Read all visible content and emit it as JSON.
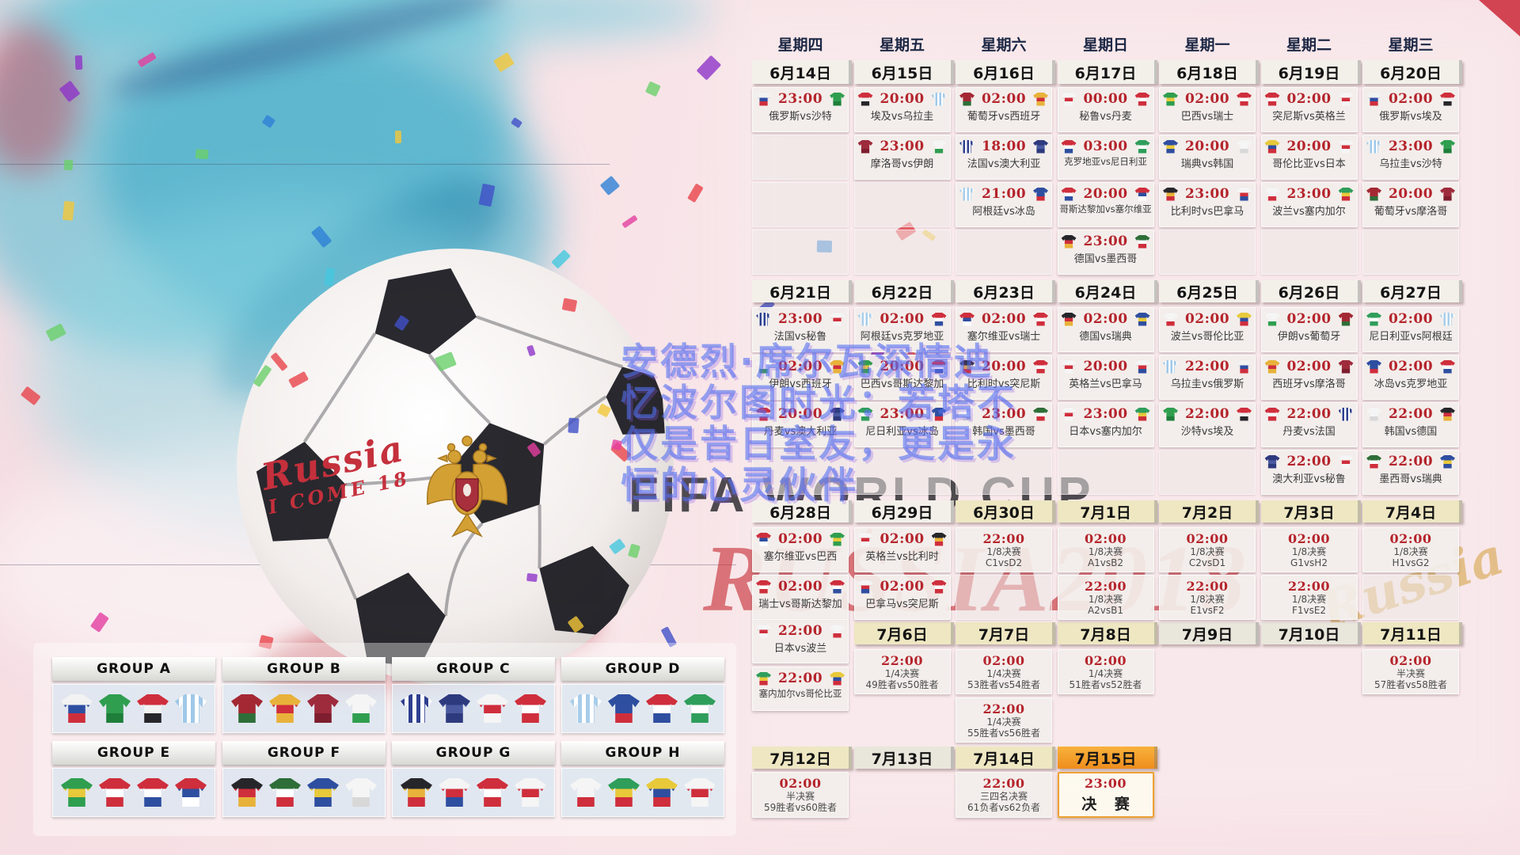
{
  "weekdays": [
    "星期四",
    "星期五",
    "星期六",
    "星期日",
    "星期一",
    "星期二",
    "星期三"
  ],
  "calendar": {
    "date_rows": [
      {
        "band": "d1",
        "cells": [
          {
            "col": 1,
            "label": "6月14日",
            "style": "g"
          },
          {
            "col": 2,
            "label": "6月15日",
            "style": "g"
          },
          {
            "col": 3,
            "label": "6月16日",
            "style": "g"
          },
          {
            "col": 4,
            "label": "6月17日",
            "style": "g"
          },
          {
            "col": 5,
            "label": "6月18日",
            "style": "g"
          },
          {
            "col": 6,
            "label": "6月19日",
            "style": "g"
          },
          {
            "col": 7,
            "label": "6月20日",
            "style": "g"
          }
        ]
      },
      {
        "band": "d2",
        "cells": [
          {
            "col": 1,
            "label": "6月21日",
            "style": "g"
          },
          {
            "col": 2,
            "label": "6月22日",
            "style": "g"
          },
          {
            "col": 3,
            "label": "6月23日",
            "style": "g"
          },
          {
            "col": 4,
            "label": "6月24日",
            "style": "g"
          },
          {
            "col": 5,
            "label": "6月25日",
            "style": "g"
          },
          {
            "col": 6,
            "label": "6月26日",
            "style": "g"
          },
          {
            "col": 7,
            "label": "6月27日",
            "style": "g"
          }
        ]
      },
      {
        "band": "d3",
        "cells": [
          {
            "col": 1,
            "label": "6月28日",
            "style": "g"
          },
          {
            "col": 2,
            "label": "6月29日",
            "style": "g"
          },
          {
            "col": 3,
            "label": "6月30日",
            "style": "k"
          },
          {
            "col": 4,
            "label": "7月1日",
            "style": "k"
          },
          {
            "col": 5,
            "label": "7月2日",
            "style": "k"
          },
          {
            "col": 6,
            "label": "7月3日",
            "style": "k"
          },
          {
            "col": 7,
            "label": "7月4日",
            "style": "k"
          }
        ]
      },
      {
        "band": "d4",
        "cells": [
          {
            "col": 2,
            "label": "7月6日",
            "style": "k"
          },
          {
            "col": 3,
            "label": "7月7日",
            "style": "k"
          },
          {
            "col": 4,
            "label": "7月8日",
            "style": "k"
          },
          {
            "col": 5,
            "label": "7月9日",
            "style": "n"
          },
          {
            "col": 6,
            "label": "7月10日",
            "style": "n"
          },
          {
            "col": 7,
            "label": "7月11日",
            "style": "k"
          }
        ]
      },
      {
        "band": "d5",
        "cells": [
          {
            "col": 1,
            "label": "7月12日",
            "style": "k"
          },
          {
            "col": 2,
            "label": "7月13日",
            "style": "n"
          },
          {
            "col": 3,
            "label": "7月14日",
            "style": "k"
          },
          {
            "col": 4,
            "label": "7月15日",
            "style": "f"
          }
        ]
      }
    ],
    "cells": [
      {
        "band": "w1a",
        "col": 1,
        "kind": "match",
        "time": "23:00",
        "home": "俄罗斯",
        "away": "沙特"
      },
      {
        "band": "w1a",
        "col": 2,
        "kind": "match",
        "time": "20:00",
        "home": "埃及",
        "away": "乌拉圭"
      },
      {
        "band": "w1a",
        "col": 3,
        "kind": "match",
        "time": "02:00",
        "home": "葡萄牙",
        "away": "西班牙"
      },
      {
        "band": "w1a",
        "col": 4,
        "kind": "match",
        "time": "00:00",
        "home": "秘鲁",
        "away": "丹麦"
      },
      {
        "band": "w1a",
        "col": 5,
        "kind": "match",
        "time": "02:00",
        "home": "巴西",
        "away": "瑞士"
      },
      {
        "band": "w1a",
        "col": 6,
        "kind": "match",
        "time": "02:00",
        "home": "突尼斯",
        "away": "英格兰"
      },
      {
        "band": "w1a",
        "col": 7,
        "kind": "match",
        "time": "02:00",
        "home": "俄罗斯",
        "away": "埃及"
      },
      {
        "band": "w1b",
        "col": 1,
        "kind": "empty"
      },
      {
        "band": "w1b",
        "col": 2,
        "kind": "match",
        "time": "23:00",
        "home": "摩洛哥",
        "away": "伊朗"
      },
      {
        "band": "w1b",
        "col": 3,
        "kind": "match",
        "time": "18:00",
        "home": "法国",
        "away": "澳大利亚"
      },
      {
        "band": "w1b",
        "col": 4,
        "kind": "match",
        "time": "03:00",
        "home": "克罗地亚",
        "away": "尼日利亚"
      },
      {
        "band": "w1b",
        "col": 5,
        "kind": "match",
        "time": "20:00",
        "home": "瑞典",
        "away": "韩国"
      },
      {
        "band": "w1b",
        "col": 6,
        "kind": "match",
        "time": "20:00",
        "home": "哥伦比亚",
        "away": "日本"
      },
      {
        "band": "w1b",
        "col": 7,
        "kind": "match",
        "time": "23:00",
        "home": "乌拉圭",
        "away": "沙特"
      },
      {
        "band": "w1c",
        "col": 1,
        "kind": "empty"
      },
      {
        "band": "w1c",
        "col": 2,
        "kind": "empty"
      },
      {
        "band": "w1c",
        "col": 3,
        "kind": "match",
        "time": "21:00",
        "home": "阿根廷",
        "away": "冰岛"
      },
      {
        "band": "w1c",
        "col": 4,
        "kind": "match",
        "time": "20:00",
        "home": "哥斯达黎加",
        "away": "塞尔维亚"
      },
      {
        "band": "w1c",
        "col": 5,
        "kind": "match",
        "time": "23:00",
        "home": "比利时",
        "away": "巴拿马"
      },
      {
        "band": "w1c",
        "col": 6,
        "kind": "match",
        "time": "23:00",
        "home": "波兰",
        "away": "塞内加尔"
      },
      {
        "band": "w1c",
        "col": 7,
        "kind": "match",
        "time": "20:00",
        "home": "葡萄牙",
        "away": "摩洛哥"
      },
      {
        "band": "w1d",
        "col": 1,
        "kind": "empty"
      },
      {
        "band": "w1d",
        "col": 2,
        "kind": "empty"
      },
      {
        "band": "w1d",
        "col": 3,
        "kind": "empty"
      },
      {
        "band": "w1d",
        "col": 4,
        "kind": "match",
        "time": "23:00",
        "home": "德国",
        "away": "墨西哥"
      },
      {
        "band": "w1d",
        "col": 5,
        "kind": "empty"
      },
      {
        "band": "w1d",
        "col": 6,
        "kind": "empty"
      },
      {
        "band": "w1d",
        "col": 7,
        "kind": "empty"
      },
      {
        "band": "w2a",
        "col": 1,
        "kind": "match",
        "time": "23:00",
        "home": "法国",
        "away": "秘鲁"
      },
      {
        "band": "w2a",
        "col": 2,
        "kind": "match",
        "time": "02:00",
        "home": "阿根廷",
        "away": "克罗地亚"
      },
      {
        "band": "w2a",
        "col": 3,
        "kind": "match",
        "time": "02:00",
        "home": "塞尔维亚",
        "away": "瑞士"
      },
      {
        "band": "w2a",
        "col": 4,
        "kind": "match",
        "time": "02:00",
        "home": "德国",
        "away": "瑞典"
      },
      {
        "band": "w2a",
        "col": 5,
        "kind": "match",
        "time": "02:00",
        "home": "波兰",
        "away": "哥伦比亚"
      },
      {
        "band": "w2a",
        "col": 6,
        "kind": "match",
        "time": "02:00",
        "home": "伊朗",
        "away": "葡萄牙"
      },
      {
        "band": "w2a",
        "col": 7,
        "kind": "match",
        "time": "02:00",
        "home": "尼日利亚",
        "away": "阿根廷"
      },
      {
        "band": "w2b",
        "col": 1,
        "kind": "match",
        "time": "02:00",
        "home": "伊朗",
        "away": "西班牙"
      },
      {
        "band": "w2b",
        "col": 2,
        "kind": "match",
        "time": "20:00",
        "home": "巴西",
        "away": "哥斯达黎加"
      },
      {
        "band": "w2b",
        "col": 3,
        "kind": "match",
        "time": "20:00",
        "home": "比利时",
        "away": "突尼斯"
      },
      {
        "band": "w2b",
        "col": 4,
        "kind": "match",
        "time": "20:00",
        "home": "英格兰",
        "away": "巴拿马"
      },
      {
        "band": "w2b",
        "col": 5,
        "kind": "match",
        "time": "22:00",
        "home": "乌拉圭",
        "away": "俄罗斯"
      },
      {
        "band": "w2b",
        "col": 6,
        "kind": "match",
        "time": "02:00",
        "home": "西班牙",
        "away": "摩洛哥"
      },
      {
        "band": "w2b",
        "col": 7,
        "kind": "match",
        "time": "02:00",
        "home": "冰岛",
        "away": "克罗地亚"
      },
      {
        "band": "w2c",
        "col": 1,
        "kind": "match",
        "time": "20:00",
        "home": "丹麦",
        "away": "澳大利亚"
      },
      {
        "band": "w2c",
        "col": 2,
        "kind": "match",
        "time": "23:00",
        "home": "尼日利亚",
        "away": "冰岛"
      },
      {
        "band": "w2c",
        "col": 3,
        "kind": "match",
        "time": "23:00",
        "home": "韩国",
        "away": "墨西哥"
      },
      {
        "band": "w2c",
        "col": 4,
        "kind": "match",
        "time": "23:00",
        "home": "日本",
        "away": "塞内加尔"
      },
      {
        "band": "w2c",
        "col": 5,
        "kind": "match",
        "time": "22:00",
        "home": "沙特",
        "away": "埃及"
      },
      {
        "band": "w2c",
        "col": 6,
        "kind": "match",
        "time": "22:00",
        "home": "丹麦",
        "away": "法国"
      },
      {
        "band": "w2c",
        "col": 7,
        "kind": "match",
        "time": "22:00",
        "home": "韩国",
        "away": "德国"
      },
      {
        "band": "w2d",
        "col": 1,
        "kind": "empty"
      },
      {
        "band": "w2d",
        "col": 2,
        "kind": "empty"
      },
      {
        "band": "w2d",
        "col": 3,
        "kind": "empty"
      },
      {
        "band": "w2d",
        "col": 4,
        "kind": "empty"
      },
      {
        "band": "w2d",
        "col": 5,
        "kind": "empty"
      },
      {
        "band": "w2d",
        "col": 6,
        "kind": "match",
        "time": "22:00",
        "home": "澳大利亚",
        "away": "秘鲁"
      },
      {
        "band": "w2d",
        "col": 7,
        "kind": "match",
        "time": "22:00",
        "home": "墨西哥",
        "away": "瑞典"
      },
      {
        "band": "w3a",
        "col": 1,
        "kind": "match",
        "time": "02:00",
        "home": "塞尔维亚",
        "away": "巴西"
      },
      {
        "band": "w3a",
        "col": 2,
        "kind": "match",
        "time": "02:00",
        "home": "英格兰",
        "away": "比利时"
      },
      {
        "band": "w3a",
        "col": 3,
        "kind": "ko",
        "time": "22:00",
        "stage": "1/8决赛",
        "pair": "C1vsD2"
      },
      {
        "band": "w3a",
        "col": 4,
        "kind": "ko",
        "time": "02:00",
        "stage": "1/8决赛",
        "pair": "A1vsB2"
      },
      {
        "band": "w3a",
        "col": 5,
        "kind": "ko",
        "time": "02:00",
        "stage": "1/8决赛",
        "pair": "C2vsD1"
      },
      {
        "band": "w3a",
        "col": 6,
        "kind": "ko",
        "time": "02:00",
        "stage": "1/8决赛",
        "pair": "G1vsH2"
      },
      {
        "band": "w3a",
        "col": 7,
        "kind": "ko",
        "time": "02:00",
        "stage": "1/8决赛",
        "pair": "H1vsG2"
      },
      {
        "band": "w3b",
        "col": 1,
        "kind": "match",
        "time": "02:00",
        "home": "瑞士",
        "away": "哥斯达黎加"
      },
      {
        "band": "w3b",
        "col": 2,
        "kind": "match",
        "time": "02:00",
        "home": "巴拿马",
        "away": "突尼斯"
      },
      {
        "band": "w3b",
        "col": 3,
        "kind": "empty"
      },
      {
        "band": "w3b",
        "col": 4,
        "kind": "ko",
        "time": "22:00",
        "stage": "1/8决赛",
        "pair": "A2vsB1"
      },
      {
        "band": "w3b",
        "col": 5,
        "kind": "ko",
        "time": "22:00",
        "stage": "1/8决赛",
        "pair": "E1vsF2"
      },
      {
        "band": "w3b",
        "col": 6,
        "kind": "ko",
        "time": "22:00",
        "stage": "1/8决赛",
        "pair": "F1vsE2"
      },
      {
        "band": "w3b",
        "col": 7,
        "kind": "empty"
      },
      {
        "band": "jp",
        "col": 1,
        "kind": "match",
        "time": "22:00",
        "home": "日本",
        "away": "波兰"
      },
      {
        "band": "w4a",
        "col": 2,
        "kind": "ko",
        "time": "22:00",
        "stage": "1/4决赛",
        "pair": "49胜者vs50胜者"
      },
      {
        "band": "w4a",
        "col": 3,
        "kind": "ko",
        "time": "02:00",
        "stage": "1/4决赛",
        "pair": "53胜者vs54胜者"
      },
      {
        "band": "w4a",
        "col": 4,
        "kind": "ko",
        "time": "02:00",
        "stage": "1/4决赛",
        "pair": "51胜者vs52胜者"
      },
      {
        "band": "w4a",
        "col": 7,
        "kind": "ko",
        "time": "02:00",
        "stage": "半决赛",
        "pair": "57胜者vs58胜者"
      },
      {
        "band": "sn",
        "col": 1,
        "kind": "match",
        "time": "22:00",
        "home": "塞内加尔",
        "away": "哥伦比亚"
      },
      {
        "band": "w4b",
        "col": 3,
        "kind": "ko",
        "time": "22:00",
        "stage": "1/4决赛",
        "pair": "55胜者vs56胜者"
      },
      {
        "band": "w5a",
        "col": 1,
        "kind": "ko",
        "time": "02:00",
        "stage": "半决赛",
        "pair": "59胜者vs60胜者"
      },
      {
        "band": "w5a",
        "col": 3,
        "kind": "ko",
        "time": "22:00",
        "stage": "三四名决赛",
        "pair": "61负者vs62负者"
      },
      {
        "band": "w5a",
        "col": 4,
        "kind": "final",
        "time": "23:00",
        "stage": "决 赛"
      }
    ]
  },
  "groups": [
    {
      "name": "GROUP A",
      "teams": [
        "俄罗斯",
        "沙特",
        "埃及",
        "乌拉圭"
      ]
    },
    {
      "name": "GROUP B",
      "teams": [
        "葡萄牙",
        "西班牙",
        "摩洛哥",
        "伊朗"
      ]
    },
    {
      "name": "GROUP C",
      "teams": [
        "法国",
        "澳大利亚",
        "秘鲁",
        "丹麦"
      ]
    },
    {
      "name": "GROUP D",
      "teams": [
        "阿根廷",
        "冰岛",
        "克罗地亚",
        "尼日利亚"
      ]
    },
    {
      "name": "GROUP E",
      "teams": [
        "巴西",
        "瑞士",
        "哥斯达黎加",
        "塞尔维亚"
      ]
    },
    {
      "name": "GROUP F",
      "teams": [
        "德国",
        "墨西哥",
        "瑞典",
        "韩国"
      ]
    },
    {
      "name": "GROUP G",
      "teams": [
        "比利时",
        "巴拿马",
        "突尼斯",
        "英格兰"
      ]
    },
    {
      "name": "GROUP H",
      "teams": [
        "波兰",
        "塞内加尔",
        "哥伦比亚",
        "日本"
      ]
    }
  ],
  "overlay_text": {
    "lines": [
      "安德烈·席尔瓦深情迪",
      "忆波尔图时光：若塔不",
      "仅是昔日室友，更是永",
      "恒的心灵伙伴"
    ]
  },
  "watermarks": {
    "fifa": "FIFA WORLD CUP",
    "russia": "RUSSIA2018"
  },
  "ball_text": {
    "script": "Russia",
    "note": "I COME 18"
  },
  "decorations": {
    "gold_script": "Russia"
  },
  "team_colors": {
    "俄罗斯": {
      "c": [
        "#f2f2f2",
        "#2e4ea1",
        "#cf2e3c"
      ]
    },
    "沙特": {
      "c": [
        "#2f9e4f",
        "#2f9e4f",
        "#1e7e3a"
      ]
    },
    "埃及": {
      "c": [
        "#cf2e3c",
        "#f2f2f2",
        "#26262a"
      ]
    },
    "乌拉圭": {
      "c": [
        "#9fc8e8",
        "#ffffff"
      ],
      "v": true
    },
    "摩洛哥": {
      "c": [
        "#9e2b3c",
        "#9e2b3c",
        "#7e1e2e"
      ]
    },
    "伊朗": {
      "c": [
        "#f5f5f5",
        "#f5f5f5",
        "#2f9e4f"
      ]
    },
    "葡萄牙": {
      "c": [
        "#a42834",
        "#a42834",
        "#2e6e38"
      ]
    },
    "西班牙": {
      "c": [
        "#e8b23a",
        "#cf2e3c",
        "#e8b23a"
      ]
    },
    "法国": {
      "c": [
        "#2e3f8f",
        "#ffffff",
        "#cf2e3c"
      ],
      "v": true
    },
    "澳大利亚": {
      "c": [
        "#2e3a7e",
        "#4a5aa0",
        "#2e3a7e"
      ]
    },
    "阿根廷": {
      "c": [
        "#a8cdea",
        "#ffffff"
      ],
      "v": true
    },
    "冰岛": {
      "c": [
        "#2e4ea0",
        "#2e4ea0",
        "#cf2e3c"
      ]
    },
    "秘鲁": {
      "c": [
        "#f5f5f5",
        "#cf2e3c",
        "#f5f5f5"
      ]
    },
    "丹麦": {
      "c": [
        "#cf2e3c",
        "#ffffff",
        "#cf2e3c"
      ]
    },
    "克罗地亚": {
      "c": [
        "#cf2e3c",
        "#ffffff",
        "#2e4ea0"
      ]
    },
    "尼日利亚": {
      "c": [
        "#2f9e5b",
        "#ffffff",
        "#2f9e5b"
      ]
    },
    "哥斯达黎加": {
      "c": [
        "#cf2e3c",
        "#ffffff",
        "#2e4ea0"
      ]
    },
    "塞尔维亚": {
      "c": [
        "#cf2e3c",
        "#2e4ea0",
        "#ffffff"
      ]
    },
    "德国": {
      "c": [
        "#26262a",
        "#cf2e3c",
        "#e8b23a"
      ]
    },
    "墨西哥": {
      "c": [
        "#2e6e38",
        "#ffffff",
        "#cf2e3c"
      ]
    },
    "巴西": {
      "c": [
        "#2f9e4f",
        "#e8c93a",
        "#2f9e4f"
      ]
    },
    "瑞士": {
      "c": [
        "#cf2e3c",
        "#ffffff",
        "#cf2e3c"
      ]
    },
    "瑞典": {
      "c": [
        "#2e4ea0",
        "#e8c93a",
        "#2e4ea0"
      ]
    },
    "韩国": {
      "c": [
        "#f5f5f5",
        "#f5f5f5",
        "#d8d8d8"
      ]
    },
    "突尼斯": {
      "c": [
        "#cf2e3c",
        "#ffffff",
        "#cf2e3c"
      ]
    },
    "英格兰": {
      "c": [
        "#f5f5f5",
        "#cf2e3c",
        "#f5f5f5"
      ]
    },
    "哥伦比亚": {
      "c": [
        "#e8c93a",
        "#2e4ea0",
        "#cf2e3c"
      ]
    },
    "日本": {
      "c": [
        "#f5f5f5",
        "#cf2e3c",
        "#f5f5f5"
      ]
    },
    "波兰": {
      "c": [
        "#f5f5f5",
        "#f5f5f5",
        "#cf2e3c"
      ]
    },
    "塞内加尔": {
      "c": [
        "#2f9e5b",
        "#e8c93a",
        "#cf2e3c"
      ]
    },
    "比利时": {
      "c": [
        "#26262a",
        "#e8b23a",
        "#cf2e3c"
      ]
    },
    "巴拿马": {
      "c": [
        "#f5f5f5",
        "#cf2e3c",
        "#2e4ea0"
      ]
    }
  },
  "colors": {
    "css": {
      "time-red": "#b5242c",
      "final-orange": "#eda133",
      "overlay-blue": "rgba(84,112,240,0.60)",
      "wm-dark": "rgba(35,35,40,0.80)",
      "wm-red": "rgba(198,44,52,0.62)"
    },
    "confetti_palette": [
      "#e33fa0",
      "#4150c8",
      "#f2c73a",
      "#45c8de",
      "#8e35c8",
      "#e8434a",
      "#6ad06a",
      "#2e7fd6"
    ]
  }
}
